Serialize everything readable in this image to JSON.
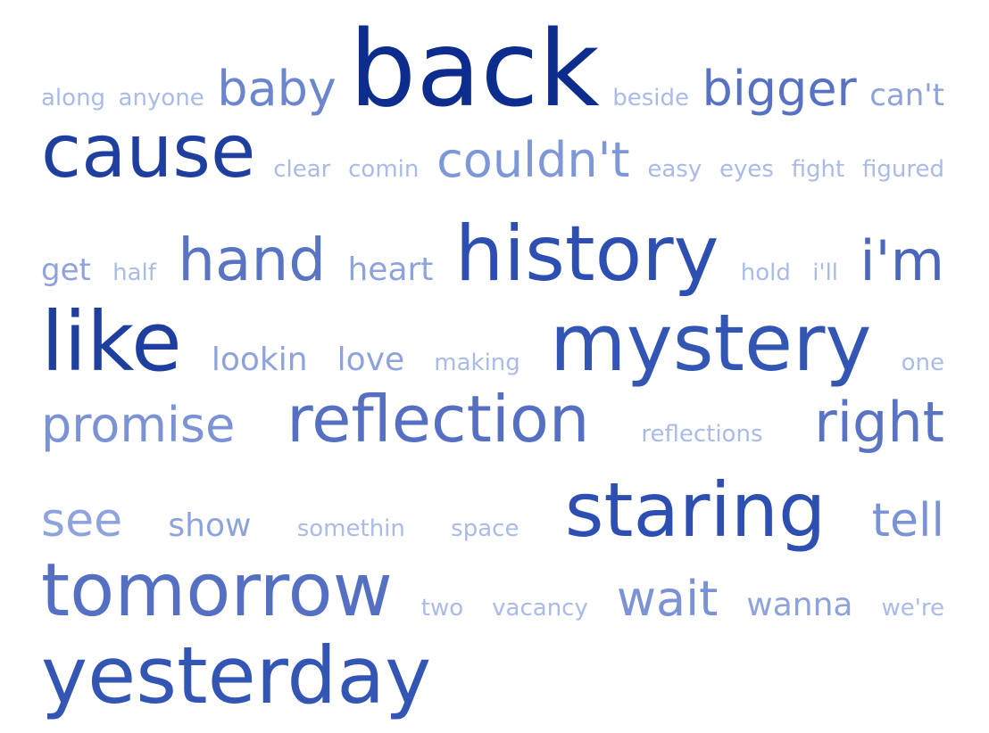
{
  "cloud": {
    "rows": [
      [
        "along",
        "anyone",
        "baby",
        "back",
        "beside",
        "bigger",
        "can't"
      ],
      [
        "cause",
        "clear",
        "comin",
        "couldn't",
        "easy",
        "eyes",
        "fight",
        "figured"
      ],
      [
        "get",
        "half",
        "hand",
        "heart",
        "history",
        "hold",
        "i'll",
        "i'm"
      ],
      [
        "like",
        "lookin",
        "love",
        "making",
        "mystery",
        "one"
      ],
      [
        "promise",
        "reflection",
        "reflections",
        "right"
      ],
      [
        "see",
        "show",
        "somethin",
        "space",
        "staring",
        "tell"
      ],
      [
        "tomorrow",
        "two",
        "vacancy",
        "wait",
        "wanna",
        "we're"
      ],
      [
        "yesterday"
      ]
    ]
  },
  "colors": {
    "darkest": "#0d2d8e",
    "dark": "#3a5cb8",
    "medium": "#6c86cd",
    "light": "#8ea3db",
    "lightest": "#a9bbe6"
  }
}
